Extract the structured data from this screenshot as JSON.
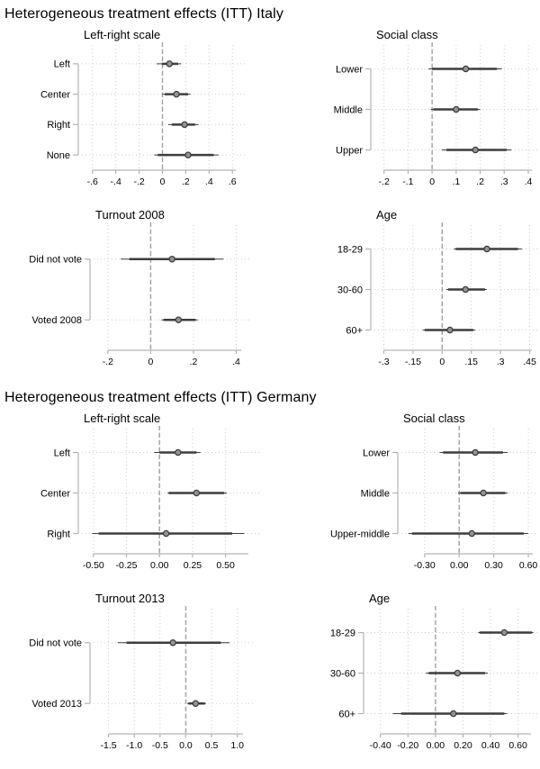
{
  "sections": [
    {
      "title": "Heterogeneous treatment effects (ITT) Italy"
    },
    {
      "title": "Heterogeneous treatment effects (ITT) Germany"
    }
  ],
  "colors": {
    "ci": "#3d3d3d",
    "marker_fill": "#939393",
    "zero_line": "#a0a0a0",
    "grid": "#cdcdcd",
    "axis": "#b3b3b3",
    "text": "#000000",
    "background": "#ffffff"
  },
  "chart_data": [
    {
      "type": "forest",
      "section": "Italy",
      "title": "Left-right scale",
      "categories": [
        "Left",
        "Center",
        "Right",
        "None"
      ],
      "estimates": [
        0.06,
        0.12,
        0.19,
        0.22
      ],
      "ci_thick": [
        [
          -0.005,
          0.135
        ],
        [
          0.02,
          0.22
        ],
        [
          0.08,
          0.28
        ],
        [
          -0.04,
          0.44
        ]
      ],
      "ci_thin": [
        [
          -0.05,
          0.16
        ],
        [
          0.0,
          0.24
        ],
        [
          0.05,
          0.31
        ],
        [
          -0.07,
          0.48
        ]
      ],
      "tick_values": [
        -0.6,
        -0.4,
        -0.2,
        0,
        0.2,
        0.4,
        0.6
      ],
      "tick_labels": [
        "-.6",
        "-.4",
        "-.2",
        "0",
        ".2",
        ".4",
        ".6"
      ],
      "xlim": [
        -0.66,
        0.66
      ],
      "zero_line": 0,
      "grid": "dotted"
    },
    {
      "type": "forest",
      "section": "Italy",
      "title": "Social class",
      "categories": [
        "Lower",
        "Middle",
        "Upper"
      ],
      "estimates": [
        0.14,
        0.1,
        0.18
      ],
      "ci_thick": [
        [
          0.0,
          0.27
        ],
        [
          0.005,
          0.19
        ],
        [
          0.06,
          0.31
        ]
      ],
      "ci_thin": [
        [
          -0.015,
          0.29
        ],
        [
          -0.005,
          0.2
        ],
        [
          0.04,
          0.33
        ]
      ],
      "tick_values": [
        -0.2,
        -0.1,
        0,
        0.1,
        0.2,
        0.3,
        0.4
      ],
      "tick_labels": [
        "-.2",
        "-.1",
        "0",
        ".1",
        ".2",
        ".3",
        ".4"
      ],
      "xlim": [
        -0.225,
        0.43
      ],
      "zero_line": 0,
      "grid": "dotted"
    },
    {
      "type": "forest",
      "section": "Italy",
      "title": "Turnout 2008",
      "categories": [
        "Did not vote",
        "Voted 2008"
      ],
      "estimates": [
        0.1,
        0.13
      ],
      "ci_thick": [
        [
          -0.1,
          0.3
        ],
        [
          0.06,
          0.21
        ]
      ],
      "ci_thin": [
        [
          -0.14,
          0.34
        ],
        [
          0.05,
          0.22
        ]
      ],
      "tick_values": [
        -0.2,
        0,
        0.2,
        0.4
      ],
      "tick_labels": [
        "-.2",
        "0",
        ".2",
        ".4"
      ],
      "xlim": [
        -0.25,
        0.44
      ],
      "zero_line": 0,
      "grid": "dotted"
    },
    {
      "type": "forest",
      "section": "Italy",
      "title": "Age",
      "categories": [
        "18-29",
        "30-60",
        "60+"
      ],
      "estimates": [
        0.23,
        0.12,
        0.04
      ],
      "ci_thick": [
        [
          0.07,
          0.39
        ],
        [
          0.03,
          0.22
        ],
        [
          -0.09,
          0.16
        ]
      ],
      "ci_thin": [
        [
          0.06,
          0.41
        ],
        [
          0.02,
          0.23
        ],
        [
          -0.1,
          0.17
        ]
      ],
      "tick_values": [
        -0.3,
        -0.15,
        0,
        0.15,
        0.3,
        0.45
      ],
      "tick_labels": [
        "-.3",
        "-.15",
        "0",
        ".15",
        ".3",
        ".45"
      ],
      "xlim": [
        -0.33,
        0.48
      ],
      "zero_line": 0,
      "grid": "dotted"
    },
    {
      "type": "forest",
      "section": "Germany",
      "title": "Left-right scale",
      "categories": [
        "Left",
        "Center",
        "Right"
      ],
      "estimates": [
        0.14,
        0.28,
        0.05
      ],
      "ci_thick": [
        [
          0.0,
          0.28
        ],
        [
          0.07,
          0.49
        ],
        [
          -0.46,
          0.55
        ]
      ],
      "ci_thin": [
        [
          -0.04,
          0.31
        ],
        [
          0.06,
          0.51
        ],
        [
          -0.51,
          0.64
        ]
      ],
      "tick_values": [
        -0.5,
        -0.25,
        0,
        0.25,
        0.5
      ],
      "tick_labels": [
        "-0.50",
        "-0.25",
        "0.00",
        "0.25",
        "0.50"
      ],
      "xlim": [
        -0.56,
        0.7
      ],
      "zero_line": 0,
      "grid": "dotted"
    },
    {
      "type": "forest",
      "section": "Germany",
      "title": "Social class",
      "categories": [
        "Lower",
        "Middle",
        "Upper-middle"
      ],
      "estimates": [
        0.14,
        0.21,
        0.11
      ],
      "ci_thick": [
        [
          -0.14,
          0.38
        ],
        [
          0.01,
          0.4
        ],
        [
          -0.41,
          0.56
        ]
      ],
      "ci_thin": [
        [
          -0.17,
          0.42
        ],
        [
          -0.01,
          0.42
        ],
        [
          -0.44,
          0.6
        ]
      ],
      "tick_values": [
        -0.3,
        0,
        0.3,
        0.6
      ],
      "tick_labels": [
        "-0.30",
        "0.00",
        "0.30",
        "0.60"
      ],
      "xlim": [
        -0.47,
        0.67
      ],
      "zero_line": 0,
      "grid": "dotted"
    },
    {
      "type": "forest",
      "section": "Germany",
      "title": "Turnout 2013",
      "categories": [
        "Did not vote",
        "Voted 2013"
      ],
      "estimates": [
        -0.25,
        0.19
      ],
      "ci_thick": [
        [
          -1.15,
          0.68
        ],
        [
          0.05,
          0.37
        ]
      ],
      "ci_thin": [
        [
          -1.32,
          0.85
        ],
        [
          0.03,
          0.39
        ]
      ],
      "tick_values": [
        -1.5,
        -1.0,
        -0.5,
        0,
        0.5,
        1.0
      ],
      "tick_labels": [
        "-1.5",
        "-1.0",
        "-0.5",
        "0.0",
        "0.5",
        "1.0"
      ],
      "xlim": [
        -1.72,
        1.18
      ],
      "zero_line": 0,
      "grid": "dotted"
    },
    {
      "type": "forest",
      "section": "Germany",
      "title": "Age",
      "categories": [
        "18-29",
        "30-60",
        "60+"
      ],
      "estimates": [
        0.5,
        0.16,
        0.13
      ],
      "ci_thick": [
        [
          0.32,
          0.7
        ],
        [
          -0.05,
          0.36
        ],
        [
          -0.25,
          0.5
        ]
      ],
      "ci_thin": [
        [
          0.31,
          0.71
        ],
        [
          -0.07,
          0.38
        ],
        [
          -0.31,
          0.52
        ]
      ],
      "tick_values": [
        -0.4,
        -0.2,
        0,
        0.2,
        0.4,
        0.6
      ],
      "tick_labels": [
        "-0.40",
        "-0.20",
        "0.00",
        "0.20",
        "0.40",
        "0.60"
      ],
      "xlim": [
        -0.47,
        0.72
      ],
      "zero_line": 0,
      "grid": "dotted"
    }
  ]
}
